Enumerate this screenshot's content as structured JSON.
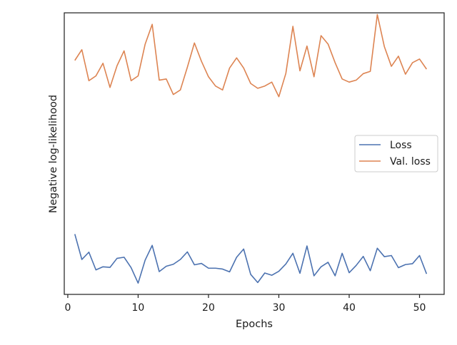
{
  "chart_data": {
    "type": "line",
    "title": "",
    "xlabel": "Epochs",
    "ylabel": "Negative log-likelihood",
    "xlim": [
      -0.5,
      53.5
    ],
    "ylim": [
      0,
      100
    ],
    "y_ticks_shown": false,
    "grid": false,
    "legend_position": "center-right",
    "x_ticks": [
      0,
      10,
      20,
      30,
      40,
      50
    ],
    "x_tick_labels": [
      "0",
      "10",
      "20",
      "30",
      "40",
      "50"
    ],
    "x": [
      1,
      2,
      3,
      4,
      5,
      6,
      7,
      8,
      9,
      10,
      11,
      12,
      13,
      14,
      15,
      16,
      17,
      18,
      19,
      20,
      21,
      22,
      23,
      24,
      25,
      26,
      27,
      28,
      29,
      30,
      31,
      32,
      33,
      34,
      35,
      36,
      37,
      38,
      39,
      40,
      41,
      42,
      43,
      44,
      45,
      46,
      47,
      48,
      49,
      50,
      51
    ],
    "series": [
      {
        "name": "Loss",
        "color": "#4c72b0",
        "values": [
          21.4,
          12.4,
          15.0,
          8.7,
          9.8,
          9.6,
          12.8,
          13.2,
          9.5,
          4.0,
          12.2,
          17.4,
          8.1,
          10.0,
          10.7,
          12.4,
          15.1,
          10.5,
          11.0,
          9.3,
          9.3,
          9.0,
          8.0,
          13.2,
          16.1,
          7.1,
          4.2,
          7.6,
          6.8,
          8.2,
          10.8,
          14.6,
          7.5,
          17.2,
          6.6,
          9.8,
          11.4,
          6.6,
          14.6,
          7.7,
          10.3,
          13.5,
          8.4,
          16.4,
          13.4,
          13.8,
          9.5,
          10.6,
          10.9,
          13.8,
          7.3
        ]
      },
      {
        "name": "Val. loss",
        "color": "#dd8452",
        "values": [
          83.1,
          86.9,
          75.9,
          77.6,
          82.1,
          73.5,
          81.2,
          86.5,
          75.9,
          77.6,
          88.9,
          95.9,
          76.1,
          76.5,
          71.0,
          72.6,
          80.7,
          89.3,
          82.8,
          77.3,
          74.0,
          72.6,
          80.4,
          84.0,
          80.4,
          74.9,
          73.2,
          74.0,
          75.4,
          70.2,
          78.5,
          95.2,
          79.4,
          88.2,
          77.3,
          91.9,
          88.9,
          82.3,
          76.5,
          75.4,
          76.1,
          78.4,
          79.2,
          99.4,
          88.0,
          81.0,
          84.6,
          78.2,
          82.3,
          83.6,
          80.0
        ]
      }
    ]
  }
}
